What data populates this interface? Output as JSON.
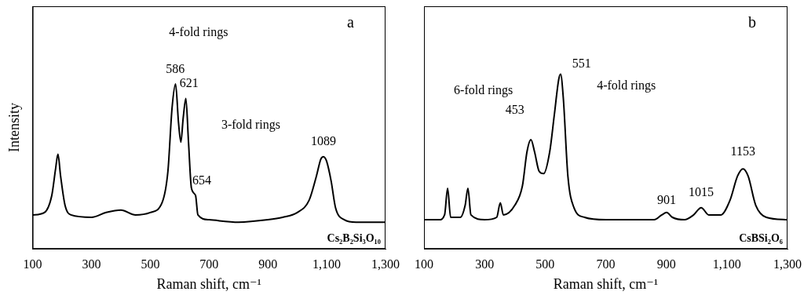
{
  "chart_data": [
    {
      "type": "line",
      "title": "a",
      "subtitle": "Cs₂B₂Si₃O₁₀",
      "x_label": "Raman shift, cm⁻¹",
      "y_label": "Intensity",
      "x": [
        100,
        140,
        165,
        178,
        186,
        195,
        210,
        230,
        300,
        350,
        400,
        450,
        500,
        540,
        560,
        574,
        586,
        596,
        604,
        612,
        621,
        630,
        640,
        654,
        662,
        700,
        800,
        900,
        950,
        1000,
        1040,
        1065,
        1080,
        1089,
        1100,
        1115,
        1130,
        1160,
        1200,
        1300
      ],
      "values": [
        14,
        15,
        22,
        33,
        39,
        30,
        18,
        14,
        13,
        15,
        16,
        14,
        15,
        19,
        32,
        58,
        68,
        52,
        44,
        54,
        62,
        44,
        25,
        22,
        14,
        12,
        11,
        12,
        13,
        15,
        20,
        30,
        37,
        38,
        36,
        28,
        17,
        12,
        11,
        11
      ],
      "color": "#000000",
      "xlim": [
        100,
        1300
      ],
      "xticks": [
        100,
        300,
        500,
        700,
        900,
        1100,
        1300
      ],
      "ylim": [
        0,
        100
      ],
      "grid": false,
      "tick_labels": "x",
      "annotations": [
        {
          "text": "586",
          "x": 585,
          "y": 74
        },
        {
          "text": "621",
          "x": 632,
          "y": 68
        },
        {
          "text": "654",
          "x": 675,
          "y": 28
        },
        {
          "text": "4-fold rings",
          "x": 664,
          "y": 89
        },
        {
          "text": "3-fold rings",
          "x": 842,
          "y": 51
        },
        {
          "text": "1089",
          "x": 1089,
          "y": 44
        }
      ]
    },
    {
      "type": "line",
      "title": "b",
      "subtitle": "CsBSi₂O₆",
      "x_label": "Raman shift, cm⁻¹",
      "x": [
        100,
        150,
        168,
        178,
        188,
        220,
        236,
        245,
        255,
        300,
        340,
        352,
        362,
        400,
        425,
        440,
        453,
        465,
        480,
        495,
        515,
        530,
        545,
        551,
        560,
        575,
        595,
        630,
        700,
        800,
        860,
        885,
        901,
        920,
        960,
        990,
        1015,
        1040,
        1080,
        1110,
        1135,
        1153,
        1170,
        1195,
        1230,
        1300
      ],
      "values": [
        12,
        12,
        14,
        25,
        13,
        13,
        18,
        25,
        14,
        12,
        13,
        19,
        14,
        18,
        26,
        40,
        45,
        40,
        32,
        31,
        40,
        55,
        70,
        72,
        62,
        30,
        17,
        13,
        12,
        12,
        12,
        14,
        15,
        13,
        12,
        14,
        17,
        14,
        14,
        20,
        30,
        33,
        30,
        18,
        13,
        12
      ],
      "color": "#000000",
      "xlim": [
        100,
        1300
      ],
      "xticks": [
        100,
        300,
        500,
        700,
        900,
        1100,
        1300
      ],
      "ylim": [
        0,
        100
      ],
      "grid": false,
      "tick_labels": "x",
      "annotations": [
        {
          "text": "6-fold rings",
          "x": 296,
          "y": 65
        },
        {
          "text": "453",
          "x": 400,
          "y": 57
        },
        {
          "text": "551",
          "x": 620,
          "y": 76
        },
        {
          "text": "4-fold rings",
          "x": 768,
          "y": 67
        },
        {
          "text": "901",
          "x": 901,
          "y": 20
        },
        {
          "text": "1015",
          "x": 1015,
          "y": 23
        },
        {
          "text": "1153",
          "x": 1153,
          "y": 40
        }
      ]
    }
  ]
}
